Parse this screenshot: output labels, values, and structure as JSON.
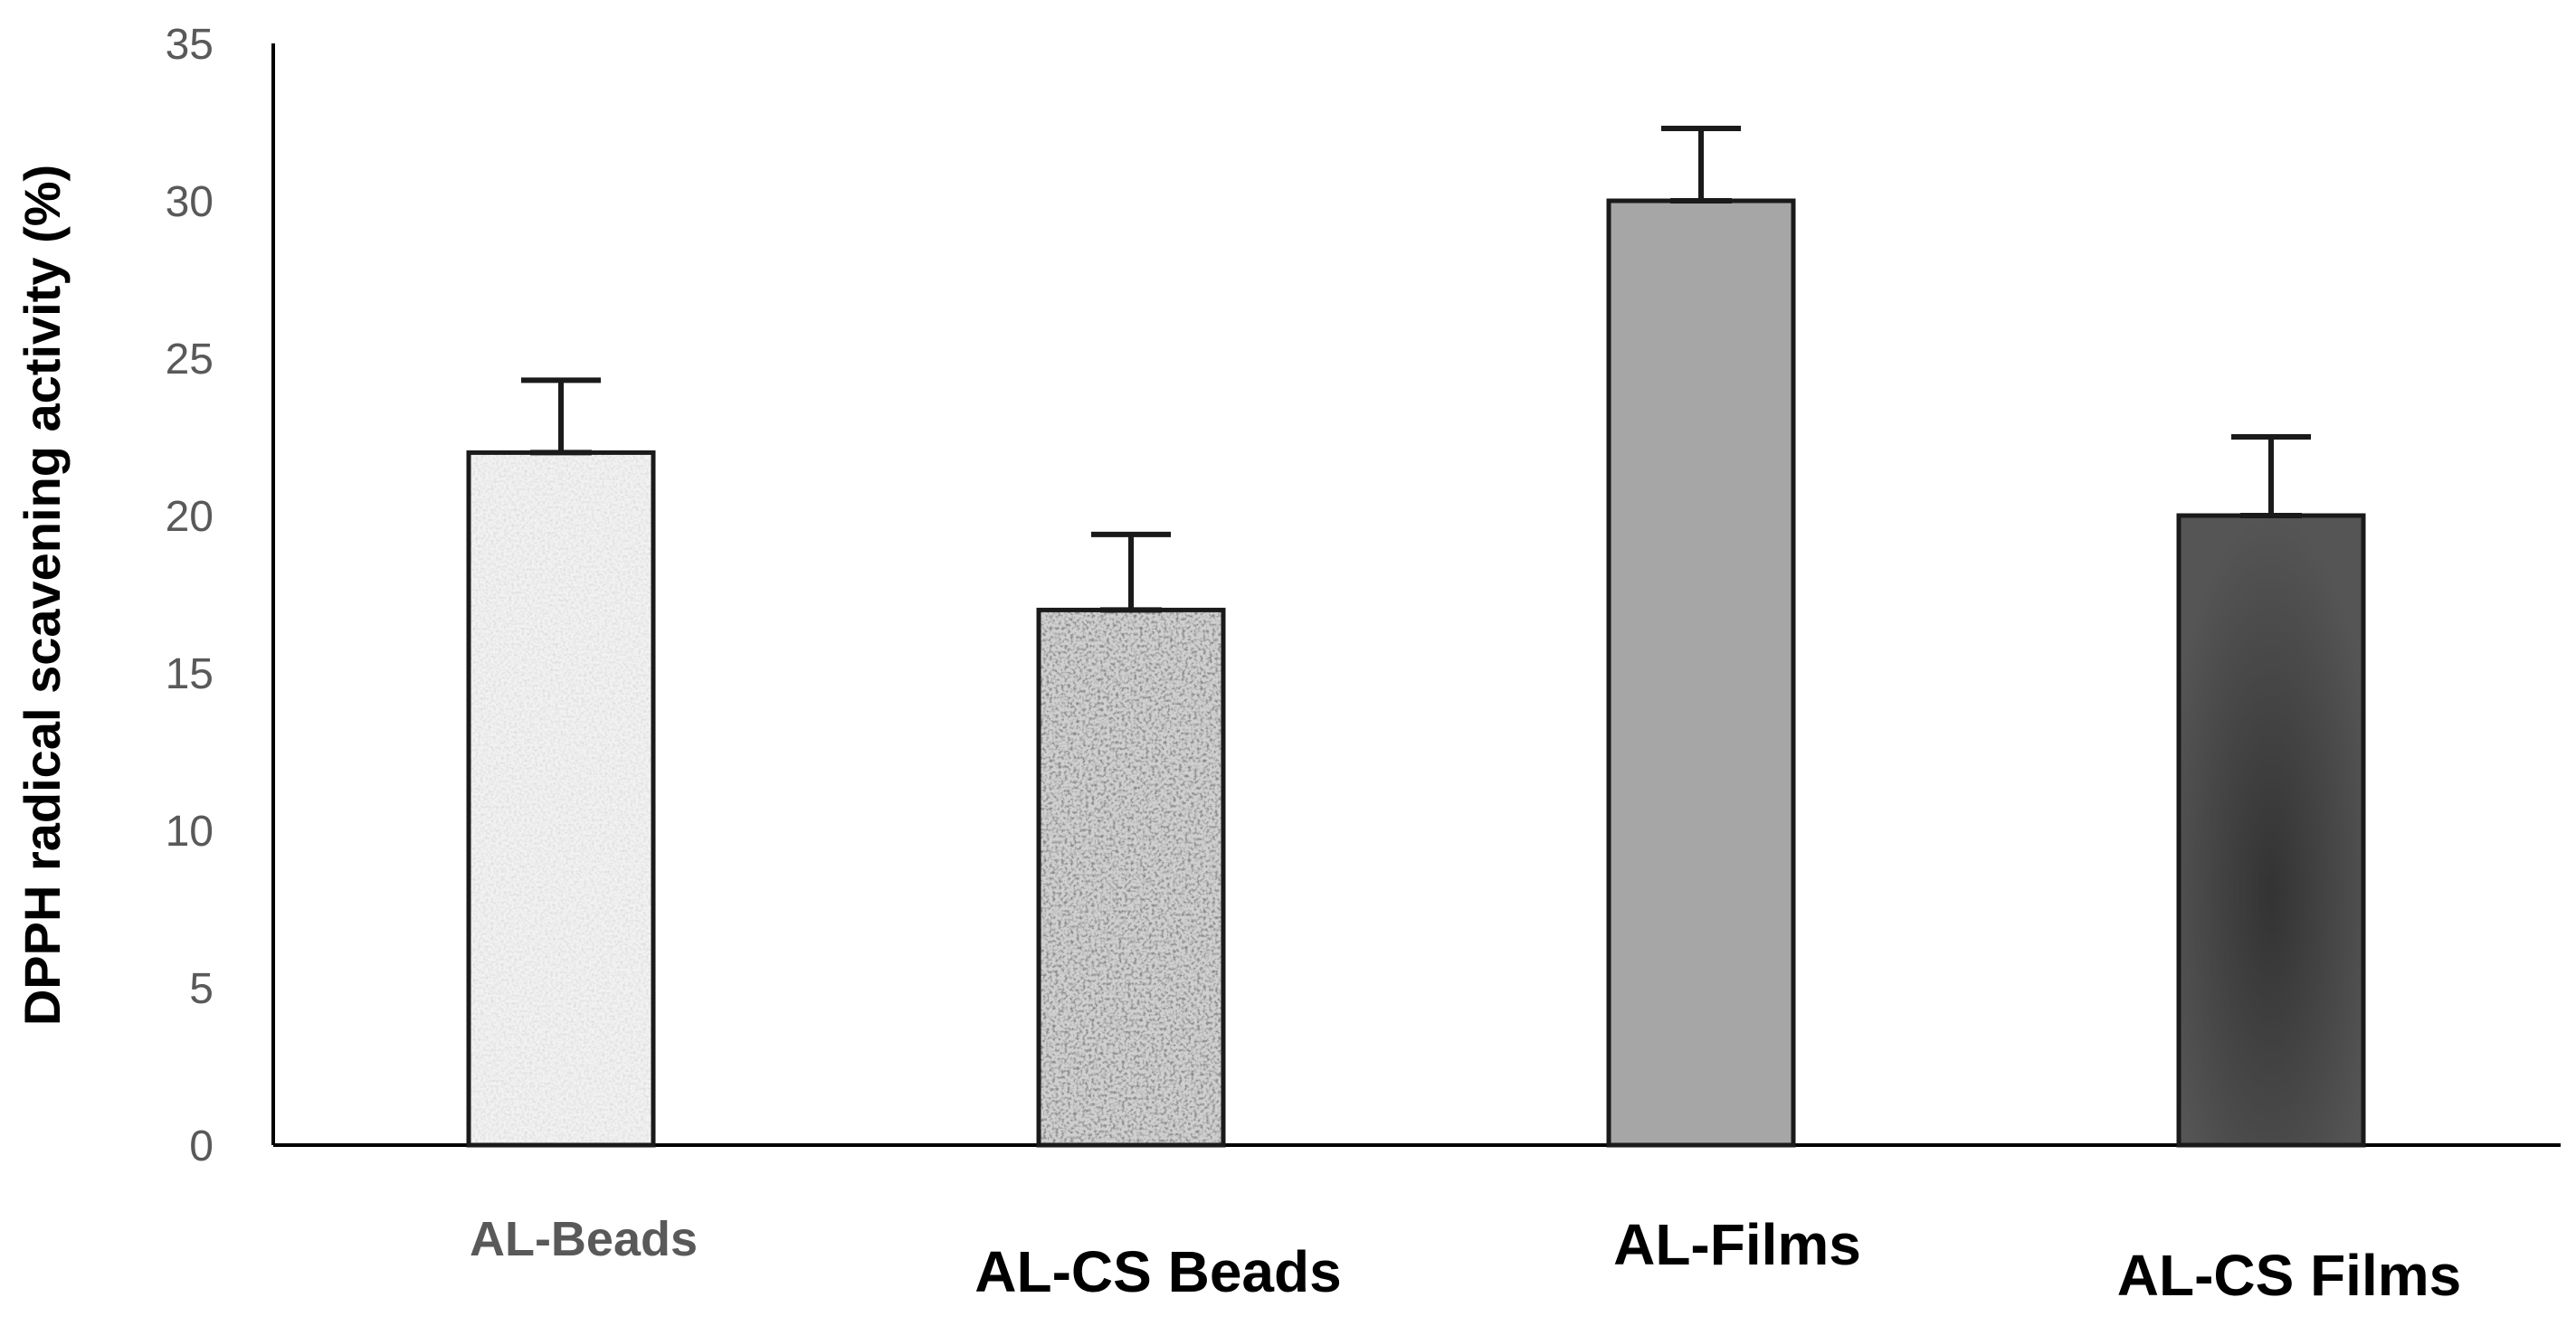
{
  "chart_data": {
    "type": "bar",
    "title": "",
    "xlabel": "",
    "ylabel": "DPPH radical scavening activity (%)",
    "categories": [
      "AL-Beads",
      "AL-CS Beads",
      "AL-Films",
      "AL-CS Films"
    ],
    "values": [
      22,
      17,
      30,
      20
    ],
    "error": [
      2.3,
      2.4,
      2.3,
      2.5
    ],
    "ylim": [
      0,
      35
    ],
    "yticks": [
      0,
      5,
      10,
      15,
      20,
      25,
      30,
      35
    ],
    "ytick_labels": [
      "0",
      "5",
      "10",
      "15",
      "20",
      "25",
      "30",
      "35"
    ],
    "bar_fills": [
      "speckle-light",
      "speckle-dark",
      "#a6a6a6",
      "gradient-dark"
    ],
    "grid": false,
    "legend": "none"
  }
}
